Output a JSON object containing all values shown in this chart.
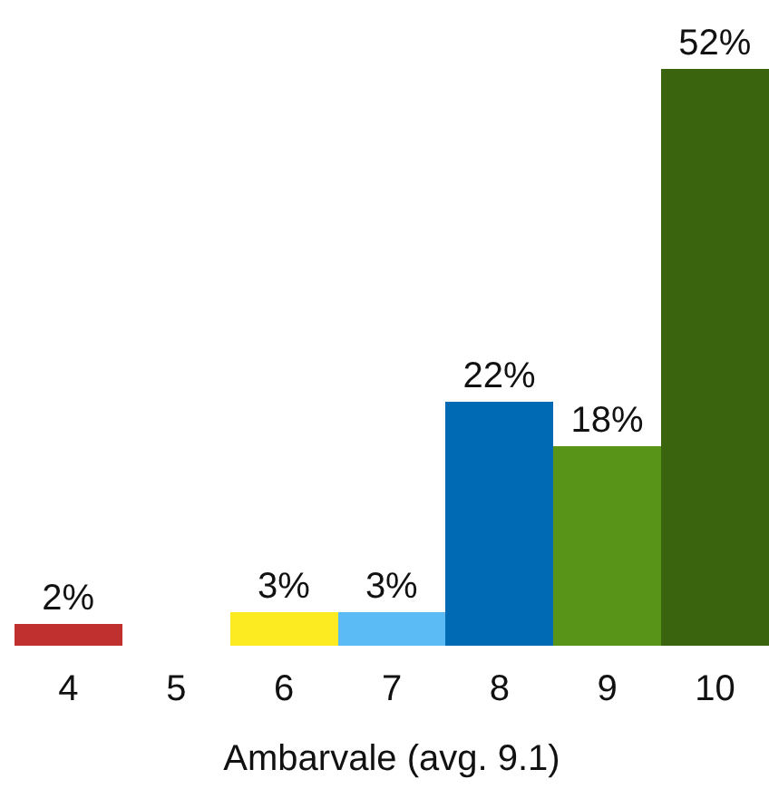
{
  "chart_data": {
    "type": "bar",
    "xlabel": "Ambarvale (avg. 9.1)",
    "categories": [
      "4",
      "5",
      "6",
      "7",
      "8",
      "9",
      "10"
    ],
    "values": [
      2,
      null,
      3,
      3,
      22,
      18,
      52
    ],
    "value_labels": [
      "2%",
      null,
      "3%",
      "3%",
      "22%",
      "18%",
      "52%"
    ],
    "colors": [
      "#c0302e",
      null,
      "#fdeb22",
      "#5bbcf5",
      "#006bb4",
      "#579418",
      "#3b640f"
    ]
  }
}
